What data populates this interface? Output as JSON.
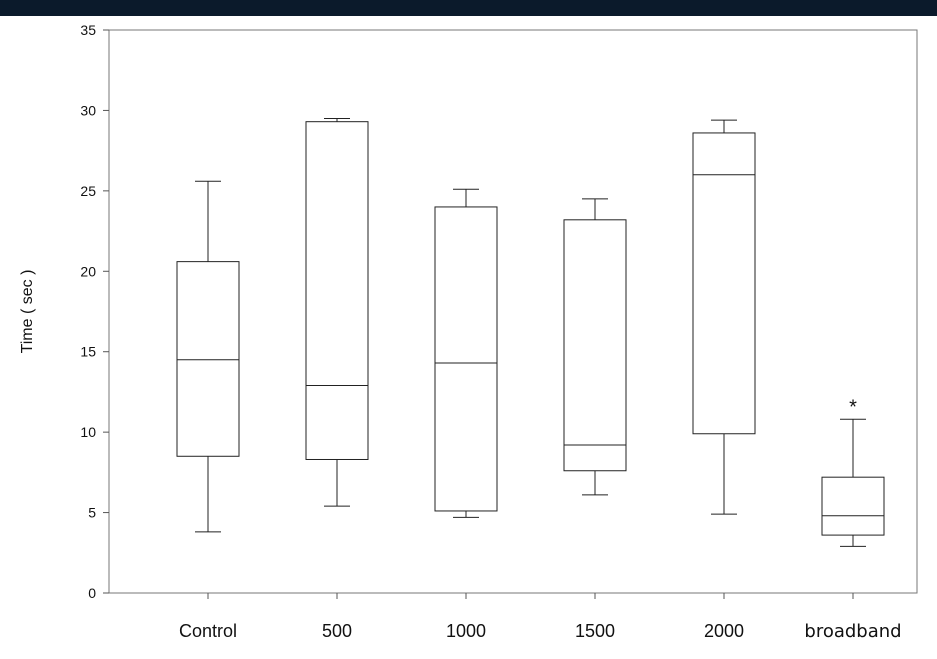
{
  "chart_data": {
    "type": "box",
    "ylabel": "Time ( sec )",
    "xlabel": "",
    "title": "",
    "ylim": [
      0,
      35
    ],
    "yticks": [
      0,
      5,
      10,
      15,
      20,
      25,
      30,
      35
    ],
    "grid": false,
    "categories": [
      "Control",
      "500",
      "1000",
      "1500",
      "2000",
      "broadband"
    ],
    "boxes": [
      {
        "category": "Control",
        "min": 3.8,
        "q1": 8.5,
        "median": 14.5,
        "q3": 20.6,
        "max": 25.6
      },
      {
        "category": "500",
        "min": 5.4,
        "q1": 8.3,
        "median": 12.9,
        "q3": 29.3,
        "max": 29.5
      },
      {
        "category": "1000",
        "min": 4.7,
        "q1": 5.1,
        "median": 14.3,
        "q3": 24.0,
        "max": 25.1
      },
      {
        "category": "1500",
        "min": 6.1,
        "q1": 7.6,
        "median": 9.2,
        "q3": 23.2,
        "max": 24.5
      },
      {
        "category": "2000",
        "min": 4.9,
        "q1": 9.9,
        "median": 26.0,
        "q3": 28.6,
        "max": 29.4
      },
      {
        "category": "broadband",
        "min": 2.9,
        "q1": 3.6,
        "median": 4.8,
        "q3": 7.2,
        "max": 10.8
      }
    ],
    "annotations": [
      {
        "category": "broadband",
        "text": "*"
      }
    ]
  }
}
